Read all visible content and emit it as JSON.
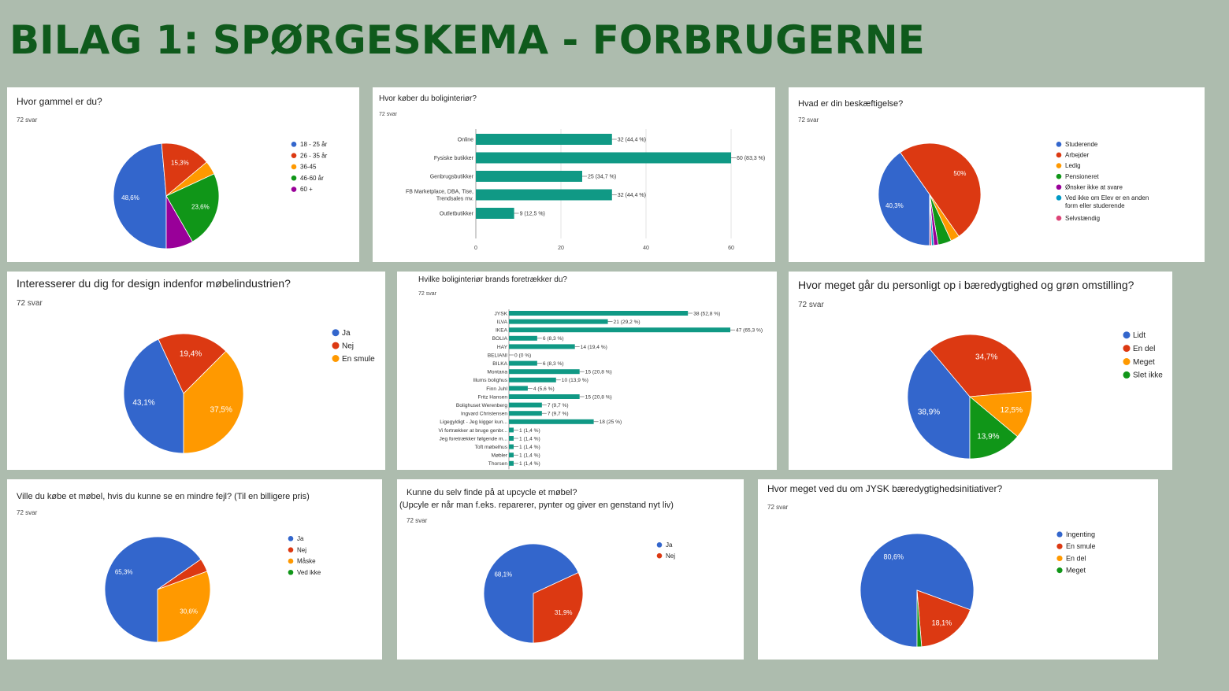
{
  "page": {
    "title": "BILAG 1: SPØRGESKEMA - FORBRUGERNE"
  },
  "colors": {
    "blue": "#3366cc",
    "red": "#dc3912",
    "orange": "#ff9900",
    "green": "#109618",
    "purple": "#990099",
    "teal": "#0099c6",
    "pink": "#dd4477",
    "bar": "#109985"
  },
  "chart_data": [
    {
      "id": "age",
      "type": "pie",
      "title": "Hvor gammel er du?",
      "count": "72 svar",
      "slices": [
        {
          "name": "18 - 25 år",
          "value": 48.6,
          "label": "48,6%",
          "color": "#3366cc"
        },
        {
          "name": "26 - 35 år",
          "value": 15.3,
          "label": "15,3%",
          "color": "#dc3912"
        },
        {
          "name": "36-45",
          "value": 4.2,
          "label": "",
          "color": "#ff9900"
        },
        {
          "name": "46-60 år",
          "value": 23.6,
          "label": "23,6%",
          "color": "#109618"
        },
        {
          "name": "60 +",
          "value": 8.3,
          "label": "",
          "color": "#990099"
        }
      ]
    },
    {
      "id": "where",
      "type": "bar",
      "title": "Hvor køber du boliginteriør?",
      "count": "72 svar",
      "xlim": [
        0,
        60
      ],
      "xticks": [
        "0",
        "20",
        "40",
        "60"
      ],
      "bars": [
        {
          "lines": [
            "Online"
          ],
          "value": 32,
          "label": "32 (44,4 %)"
        },
        {
          "lines": [
            "Fysiske butikker"
          ],
          "value": 60,
          "label": "60 (83,3 %)"
        },
        {
          "lines": [
            "Genbrugsbutikker"
          ],
          "value": 25,
          "label": "25 (34,7 %)"
        },
        {
          "lines": [
            "FB Marketplace, DBA, Tise,",
            "Trendsales mv."
          ],
          "value": 32,
          "label": "32 (44,4 %)"
        },
        {
          "lines": [
            "Outletbutikker"
          ],
          "value": 9,
          "label": "9 (12,5 %)"
        }
      ]
    },
    {
      "id": "job",
      "type": "pie",
      "title": "Hvad er din beskæftigelse?",
      "count": "72 svar",
      "slices": [
        {
          "name": "Studerende",
          "value": 40.3,
          "label": "40,3%",
          "color": "#3366cc"
        },
        {
          "name": "Arbejder",
          "value": 50,
          "label": "50%",
          "color": "#dc3912"
        },
        {
          "name": "Ledig",
          "value": 2.8,
          "label": "",
          "color": "#ff9900"
        },
        {
          "name": "Pensioneret",
          "value": 4.2,
          "label": "",
          "color": "#109618"
        },
        {
          "name": "Ønsker ikke at svare",
          "value": 1.4,
          "label": "",
          "color": "#990099"
        },
        {
          "name": "Ved ikke om Elev er en anden form eller studerende",
          "value": 0.7,
          "label": "",
          "color": "#0099c6"
        },
        {
          "name": "Selvstændig",
          "value": 0.6,
          "label": "",
          "color": "#dd4477"
        }
      ]
    },
    {
      "id": "design",
      "type": "pie",
      "title": "Interesserer du dig for design indenfor møbelindustrien?",
      "count": "72 svar",
      "slices": [
        {
          "name": "Ja",
          "value": 43.1,
          "label": "43,1%",
          "color": "#3366cc"
        },
        {
          "name": "Nej",
          "value": 19.4,
          "label": "19,4%",
          "color": "#dc3912"
        },
        {
          "name": "En smule",
          "value": 37.5,
          "label": "37,5%",
          "color": "#ff9900"
        }
      ]
    },
    {
      "id": "brands",
      "type": "bar",
      "title": "Hvilke boliginteriør brands foretrækker du?",
      "count": "72 svar",
      "xlim": [
        0,
        47
      ],
      "bars": [
        {
          "lines": [
            "JYSK"
          ],
          "value": 38,
          "label": "38 (52,8 %)"
        },
        {
          "lines": [
            "ILVA"
          ],
          "value": 21,
          "label": "21 (29,2 %)"
        },
        {
          "lines": [
            "IKEA"
          ],
          "value": 47,
          "label": "47 (65,3 %)"
        },
        {
          "lines": [
            "BOLIA"
          ],
          "value": 6,
          "label": "6 (8,3 %)"
        },
        {
          "lines": [
            "HAY"
          ],
          "value": 14,
          "label": "14 (19,4 %)"
        },
        {
          "lines": [
            "BELIANI"
          ],
          "value": 0,
          "label": "0 (0 %)"
        },
        {
          "lines": [
            "BILKA"
          ],
          "value": 6,
          "label": "6 (8,3 %)"
        },
        {
          "lines": [
            "Montana"
          ],
          "value": 15,
          "label": "15 (20,8 %)"
        },
        {
          "lines": [
            "Illums bolighus"
          ],
          "value": 10,
          "label": "10 (13,9 %)"
        },
        {
          "lines": [
            "Finn Juhl"
          ],
          "value": 4,
          "label": "4 (5,6 %)"
        },
        {
          "lines": [
            "Fritz Hansen"
          ],
          "value": 15,
          "label": "15 (20,8 %)"
        },
        {
          "lines": [
            "Bolighuset Werenberg"
          ],
          "value": 7,
          "label": "7 (9,7 %)"
        },
        {
          "lines": [
            "Ingvard Christensen"
          ],
          "value": 7,
          "label": "7 (9,7 %)"
        },
        {
          "lines": [
            "Ligegyldigt - Jeg kigger kun..."
          ],
          "value": 18,
          "label": "18 (25 %)"
        },
        {
          "lines": [
            "Vi fortrækker at bruge genbr..."
          ],
          "value": 1,
          "label": "1 (1,4 %)"
        },
        {
          "lines": [
            "Jeg foretrækker følgende m..."
          ],
          "value": 1,
          "label": "1 (1,4 %)"
        },
        {
          "lines": [
            "Toft møbelhus"
          ],
          "value": 1,
          "label": "1 (1,4 %)"
        },
        {
          "lines": [
            "Møbler"
          ],
          "value": 1,
          "label": "1 (1,4 %)"
        },
        {
          "lines": [
            "Thorsen"
          ],
          "value": 1,
          "label": "1 (1,4 %)"
        }
      ]
    },
    {
      "id": "sustain",
      "type": "pie",
      "title": "Hvor meget går du personligt op i bæredygtighed og grøn omstilling?",
      "count": "72 svar",
      "slices": [
        {
          "name": "Lidt",
          "value": 38.9,
          "label": "38,9%",
          "color": "#3366cc"
        },
        {
          "name": "En del",
          "value": 34.7,
          "label": "34,7%",
          "color": "#dc3912"
        },
        {
          "name": "Meget",
          "value": 12.5,
          "label": "12,5%",
          "color": "#ff9900"
        },
        {
          "name": "Slet ikke",
          "value": 13.9,
          "label": "13,9%",
          "color": "#109618"
        }
      ]
    },
    {
      "id": "flaw",
      "type": "pie",
      "title": "Ville du købe et møbel, hvis du kunne se en mindre fejl? (Til en billigere pris)",
      "count": "72 svar",
      "slices": [
        {
          "name": "Ja",
          "value": 65.3,
          "label": "65,3%",
          "color": "#3366cc"
        },
        {
          "name": "Nej",
          "value": 4.1,
          "label": "",
          "color": "#dc3912"
        },
        {
          "name": "Måske",
          "value": 30.6,
          "label": "30,6%",
          "color": "#ff9900"
        },
        {
          "name": "Ved ikke",
          "value": 0,
          "label": "",
          "color": "#109618"
        }
      ]
    },
    {
      "id": "upcycle",
      "type": "pie",
      "title": "Kunne du selv finde på at upcycle et møbel?",
      "subtitle": "(Upcyle er når man f.eks. reparerer, pynter og giver en genstand nyt liv)",
      "count": "72 svar",
      "slices": [
        {
          "name": "Ja",
          "value": 68.1,
          "label": "68,1%",
          "color": "#3366cc"
        },
        {
          "name": "Nej",
          "value": 31.9,
          "label": "31,9%",
          "color": "#dc3912"
        }
      ]
    },
    {
      "id": "jysk",
      "type": "pie",
      "title": "Hvor meget ved du om JYSK bæredygtighedsinitiativer?",
      "count": "72 svar",
      "slices": [
        {
          "name": "Ingenting",
          "value": 80.6,
          "label": "80,6%",
          "color": "#3366cc"
        },
        {
          "name": "En smule",
          "value": 18.1,
          "label": "18,1%",
          "color": "#dc3912"
        },
        {
          "name": "En del",
          "value": 0,
          "label": "",
          "color": "#ff9900"
        },
        {
          "name": "Meget",
          "value": 1.3,
          "label": "",
          "color": "#109618"
        }
      ]
    }
  ]
}
